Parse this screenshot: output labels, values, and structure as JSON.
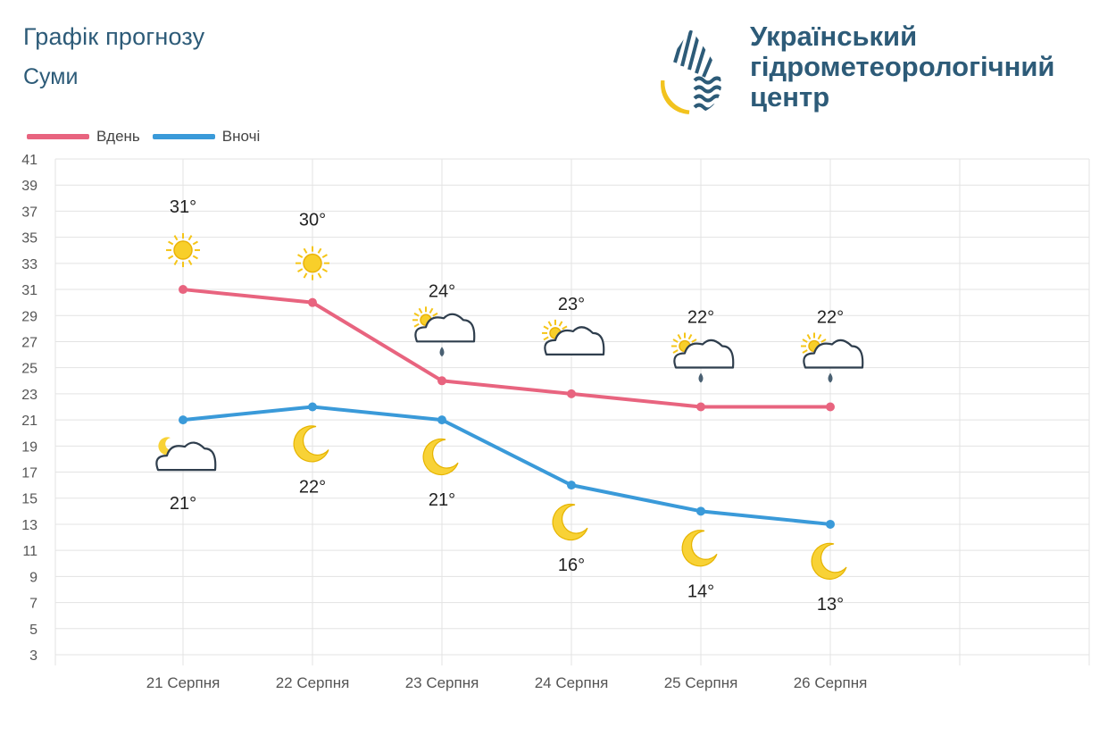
{
  "header": {
    "title": "Графік прогнозу",
    "city": "Суми"
  },
  "brand": {
    "line1": "Український",
    "line2": "гідрометеорологічний",
    "line3": "центр",
    "logo_icon": "drop-logo-icon"
  },
  "legend": {
    "day_label": "Вдень",
    "night_label": "Вночі",
    "day_color": "#e8647f",
    "night_color": "#3a9ad9"
  },
  "chart_data": {
    "type": "line",
    "categories": [
      "21 Серпня",
      "22 Серпня",
      "23 Серпня",
      "24 Серпня",
      "25 Серпня",
      "26 Серпня"
    ],
    "series": [
      {
        "name": "Вдень",
        "values": [
          31,
          30,
          24,
          23,
          22,
          22
        ],
        "labels": [
          "31°",
          "30°",
          "24°",
          "23°",
          "22°",
          "22°"
        ],
        "icons": [
          "sun-icon",
          "sun-icon",
          "cloud-rain-sun-icon",
          "cloud-sun-icon",
          "cloud-rain-sun-icon",
          "cloud-rain-sun-icon"
        ],
        "color": "#e8647f"
      },
      {
        "name": "Вночі",
        "values": [
          21,
          22,
          21,
          16,
          14,
          13
        ],
        "labels": [
          "21°",
          "22°",
          "21°",
          "16°",
          "14°",
          "13°"
        ],
        "icons": [
          "cloud-moon-icon",
          "moon-icon",
          "moon-icon",
          "moon-icon",
          "moon-icon",
          "moon-icon"
        ],
        "color": "#3a9ad9"
      }
    ],
    "ylim": [
      3,
      41
    ],
    "yticks": [
      3,
      5,
      7,
      9,
      11,
      13,
      15,
      17,
      19,
      21,
      23,
      25,
      27,
      29,
      31,
      33,
      35,
      37,
      39,
      41
    ],
    "xlabel": "",
    "ylabel": "",
    "grid": true,
    "legend_position": "top-left"
  }
}
